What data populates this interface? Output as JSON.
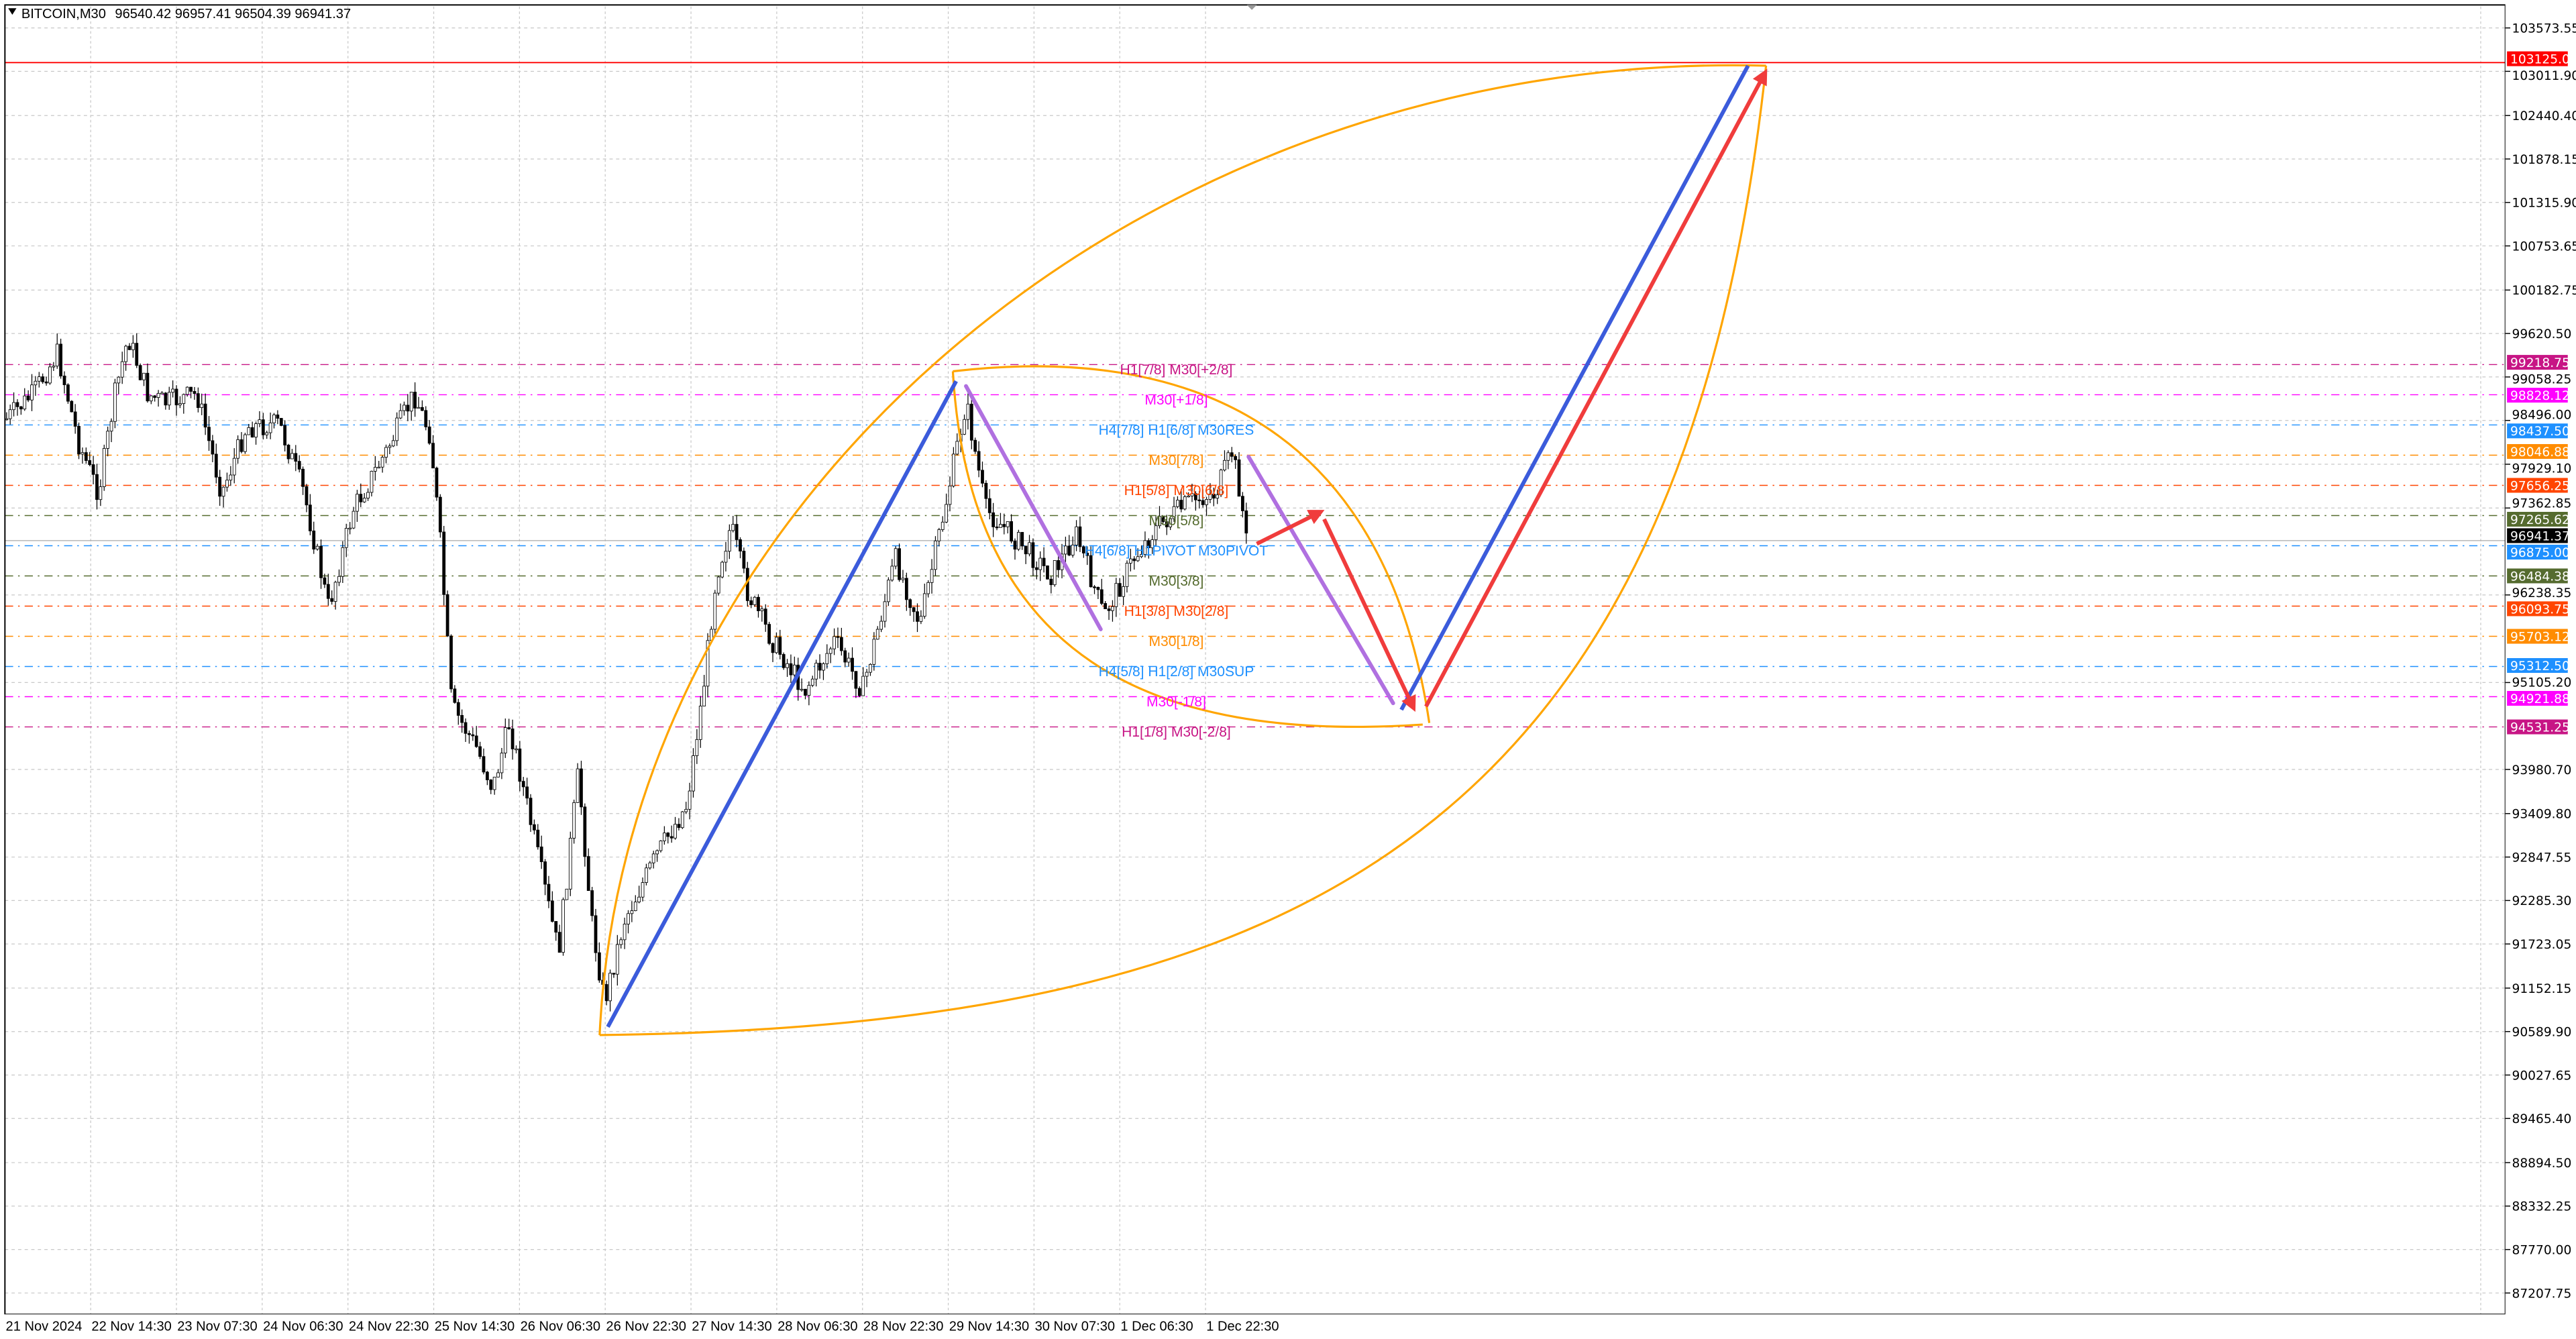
{
  "header": {
    "symbol": "BITCOIN,M30",
    "ohlc": "96540.42 96957.41 96504.39 96941.37"
  },
  "colors": {
    "up_candle": "#ffffff",
    "down_candle": "#000000",
    "grid": "#c8c8c8",
    "curve": "#ffa500",
    "blue_line": "#3b5bdb",
    "red_arrow": "#f03c3c",
    "purple_line": "#b070e0",
    "target_line": "#ff0000"
  },
  "price_axis": {
    "ticks": [
      "103573.55",
      "103011.90",
      "102440.40",
      "101878.15",
      "101315.90",
      "100753.65",
      "100182.75",
      "99620.50",
      "99058.25",
      "98496.00",
      "97929.10",
      "97362.85",
      "96238.35",
      "95105.20",
      "93980.70",
      "93409.80",
      "92847.55",
      "92285.30",
      "91723.05",
      "91152.15",
      "90589.90",
      "90027.65",
      "89465.40",
      "88894.50",
      "88332.25",
      "87770.00",
      "87207.75"
    ],
    "current_price": {
      "value": "96941.37",
      "color": "#000000"
    },
    "target": {
      "value": "103125.00",
      "color": "#ff0000"
    }
  },
  "time_axis": {
    "labels": [
      "21 Nov 2024",
      "22 Nov 14:30",
      "23 Nov 07:30",
      "24 Nov 06:30",
      "24 Nov 22:30",
      "25 Nov 14:30",
      "26 Nov 06:30",
      "26 Nov 22:30",
      "27 Nov 14:30",
      "28 Nov 06:30",
      "28 Nov 22:30",
      "29 Nov 14:30",
      "30 Nov 07:30",
      "1 Dec 06:30",
      "1 Dec 22:30"
    ]
  },
  "murrey_levels": [
    {
      "price": "99218.75",
      "label": "H1[7/8] M30[+2/8]",
      "color": "#c71585"
    },
    {
      "price": "98828.12",
      "label": "M30[+1/8]",
      "color": "#ff00ff"
    },
    {
      "price": "98437.50",
      "label": "H4[7/8] H1[6/8] M30RES",
      "color": "#1e90ff"
    },
    {
      "price": "98046.88",
      "label": "M30[7/8]",
      "color": "#ff8c00"
    },
    {
      "price": "97656.25",
      "label": "H1[5/8] M30[6/8]",
      "color": "#ff4500"
    },
    {
      "price": "97265.62",
      "label": "M30[5/8]",
      "color": "#556b2f"
    },
    {
      "price": "96875.00",
      "label": "H4[6/8] H1PIVOT M30PIVOT",
      "color": "#1e90ff"
    },
    {
      "price": "96484.38",
      "label": "M30[3/8]",
      "color": "#556b2f"
    },
    {
      "price": "96093.75",
      "label": "H1[3/8] M30[2/8]",
      "color": "#ff4500"
    },
    {
      "price": "95703.12",
      "label": "M30[1/8]",
      "color": "#ff8c00"
    },
    {
      "price": "95312.50",
      "label": "H4[5/8] H1[2/8] M30SUP",
      "color": "#1e90ff"
    },
    {
      "price": "94921.88",
      "label": "M30[-1/8]",
      "color": "#ff00ff"
    },
    {
      "price": "94531.25",
      "label": "H1[1/8] M30[-2/8]",
      "color": "#c71585"
    }
  ],
  "chart_data": {
    "type": "candlestick",
    "ylim": [
      87207.75,
      103573.55
    ],
    "grid": true
  }
}
